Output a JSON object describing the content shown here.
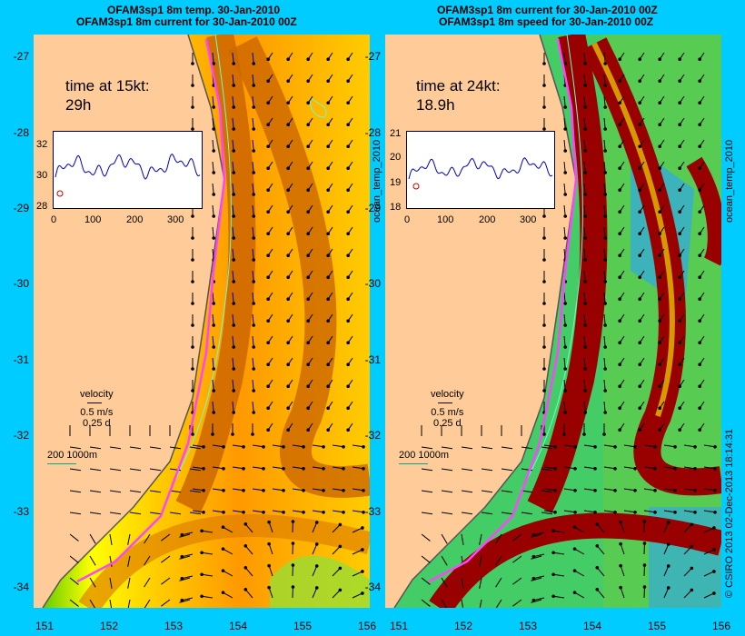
{
  "left_panel": {
    "title_line1": "OFAM3sp1 8m temp. 30-Jan-2010",
    "title_line2": "OFAM3sp1 8m current for 30-Jan-2010 00Z",
    "time_line1": "time at 15kt:",
    "time_line2": "29h",
    "inset_y_ticks": [
      "32",
      "30",
      "28"
    ],
    "inset_x_ticks": [
      "0",
      "100",
      "200",
      "300"
    ],
    "velocity_label": "velocity",
    "velocity_speed": "0.5 m/s",
    "velocity_time": "0.25 d",
    "scale_label": "200  1000m",
    "side_label": "ocean_temp_2010"
  },
  "right_panel": {
    "title_line1": "OFAM3sp1 8m current for 30-Jan-2010 00Z",
    "title_line2": "OFAM3sp1 8m speed for 30-Jan-2010 00Z",
    "time_line1": "time at 24kt:",
    "time_line2": "18.9h",
    "inset_y_ticks": [
      "21",
      "20",
      "19",
      "18"
    ],
    "inset_x_ticks": [
      "0",
      "100",
      "200",
      "300"
    ],
    "velocity_label": "velocity",
    "velocity_speed": "0.5 m/s",
    "velocity_time": "0.25 d",
    "scale_label": "200  1000m",
    "side_label": "ocean_temp_2010"
  },
  "map_axes": {
    "lat_ticks": [
      "-27",
      "-28",
      "-29",
      "-30",
      "-31",
      "-32",
      "-33",
      "-34"
    ],
    "lon_ticks": [
      "151",
      "152",
      "153",
      "154",
      "155",
      "156"
    ]
  },
  "colors": {
    "background": "#00ccff",
    "land": "#ffcc99",
    "track": "#ff44ff",
    "isobath": "#66ffcc"
  },
  "credit": "© CSIRO 2013   02-Dec-2013 18:14:31"
}
